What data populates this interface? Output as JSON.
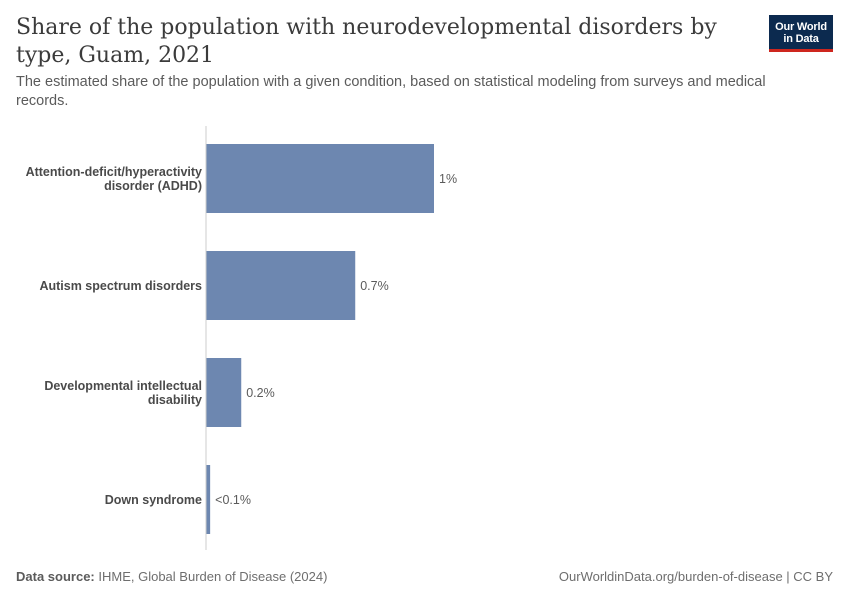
{
  "header": {
    "title": "Share of the population with neurodevelopmental disorders by type, Guam, 2021",
    "subtitle": "The estimated share of the population with a given condition, based on statistical modeling from surveys and medical records."
  },
  "logo": {
    "line1": "Our World",
    "line2": "in Data"
  },
  "colors": {
    "bar": "#6d87b0",
    "axis": "#cccccc"
  },
  "chart_data": {
    "type": "bar",
    "orientation": "horizontal",
    "categories": [
      [
        "Attention-deficit/hyperactivity",
        "disorder (ADHD)"
      ],
      [
        "Autism spectrum disorders"
      ],
      [
        "Developmental intellectual",
        "disability"
      ],
      [
        "Down syndrome"
      ]
    ],
    "values": [
      1.1,
      0.72,
      0.17,
      0.02
    ],
    "value_labels": [
      "1%",
      "0.7%",
      "0.2%",
      "<0.1%"
    ],
    "unit": "%",
    "xlim": [
      0,
      1.1
    ],
    "grid": false
  },
  "footer": {
    "source_label": "Data source:",
    "source_text": "IHME, Global Burden of Disease (2024)",
    "right_text": "OurWorldinData.org/burden-of-disease | CC BY"
  }
}
